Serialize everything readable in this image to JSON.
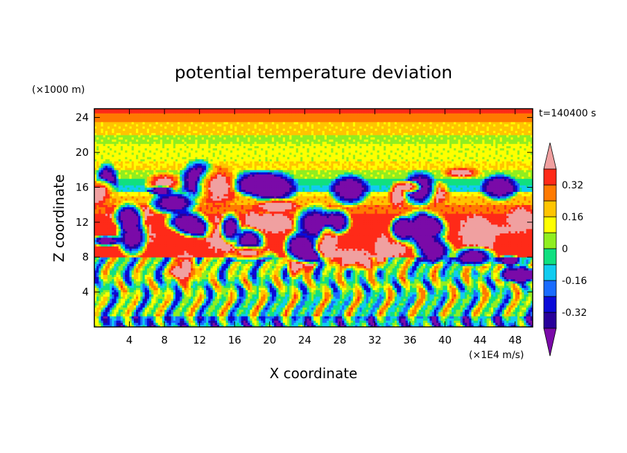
{
  "chart_data": {
    "type": "heatmap",
    "title": "potential temperature deviation",
    "xlabel": "X coordinate",
    "ylabel": "Z coordinate",
    "x_unit": "(×1E4 m/s)",
    "y_unit": "(×1000 m)",
    "time_label": "t=140400 s",
    "xlim": [
      0,
      50
    ],
    "ylim": [
      0,
      25
    ],
    "x_ticks": [
      4,
      8,
      12,
      16,
      20,
      24,
      28,
      32,
      36,
      40,
      44,
      48
    ],
    "y_ticks": [
      4,
      8,
      12,
      16,
      20,
      24
    ],
    "colorbar": {
      "levels": [
        -0.4,
        -0.32,
        -0.24,
        -0.16,
        -0.08,
        0,
        0.08,
        0.16,
        0.24,
        0.32,
        0.4
      ],
      "labels": [
        "0.32",
        "0.16",
        "0",
        "-0.16",
        "-0.32"
      ],
      "label_values": [
        0.32,
        0.16,
        0,
        -0.16,
        -0.32
      ],
      "colors": [
        "#7a0aa8",
        "#28009a",
        "#0a0ad8",
        "#1a6cff",
        "#10ccf0",
        "#10e080",
        "#90ee20",
        "#ffff00",
        "#ffc400",
        "#ff7a00",
        "#ff2a18",
        "#f0a0a0"
      ],
      "extend": "both"
    },
    "bands": [
      {
        "z": [
          0,
          1.5
        ],
        "value": -0.2
      },
      {
        "z": [
          1.5,
          8
        ],
        "value": 0.0,
        "note": "oscillating"
      },
      {
        "z": [
          8,
          12
        ],
        "value": 0.36
      },
      {
        "z": [
          12,
          13
        ],
        "value": 0.36
      },
      {
        "z": [
          13,
          14
        ],
        "value": 0.3
      },
      {
        "z": [
          14,
          15
        ],
        "value": 0.22
      },
      {
        "z": [
          15,
          15.5
        ],
        "value": 0.14
      },
      {
        "z": [
          15.5,
          16.2
        ],
        "value": -0.1
      },
      {
        "z": [
          16.2,
          17
        ],
        "value": -0.04
      },
      {
        "z": [
          17,
          18
        ],
        "value": 0.06
      },
      {
        "z": [
          18,
          19
        ],
        "value": 0.16
      },
      {
        "z": [
          19,
          21
        ],
        "value": 0.1
      },
      {
        "z": [
          21,
          22
        ],
        "value": 0.06
      },
      {
        "z": [
          22,
          23.5
        ],
        "value": 0.18
      },
      {
        "z": [
          23.5,
          24.5
        ],
        "value": 0.28
      },
      {
        "z": [
          24.5,
          25
        ],
        "value": 0.36
      }
    ]
  }
}
